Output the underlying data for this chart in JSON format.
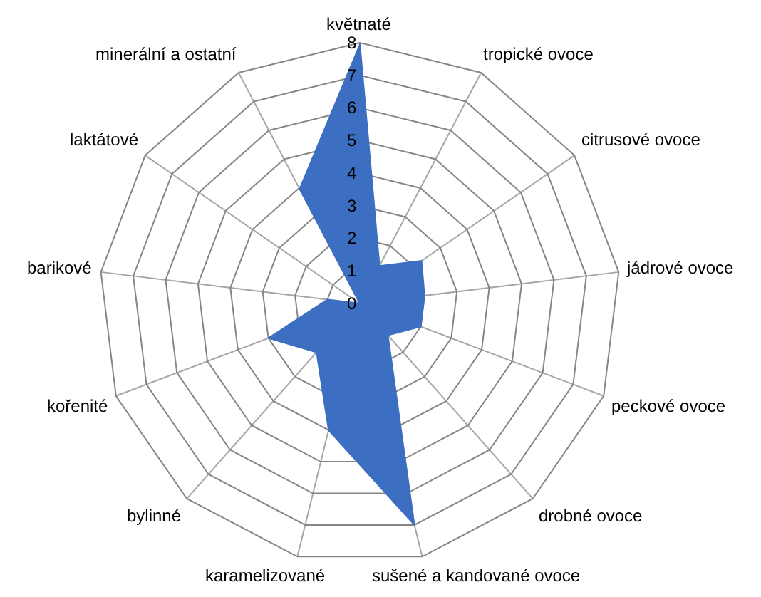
{
  "chart_data": {
    "type": "radar",
    "categories": [
      "květnaté",
      "tropické ovoce",
      "citrusové ovoce",
      "jádrové ovoce",
      "peckové ovoce",
      "drobné ovoce",
      "sušené a kandované ovoce",
      "karamelizované",
      "bylinné",
      "kořenité",
      "barikové",
      "laktátové",
      "minerální a ostatní"
    ],
    "series": [
      {
        "color": "#3c6fc2",
        "values": [
          8,
          1.3,
          2.3,
          2,
          2,
          1.3,
          7,
          4,
          2,
          3,
          1,
          0,
          4
        ]
      }
    ],
    "ylim": [
      0,
      8
    ],
    "yticks": [
      0,
      1,
      2,
      3,
      4,
      5,
      6,
      7,
      8
    ],
    "grid": true
  }
}
